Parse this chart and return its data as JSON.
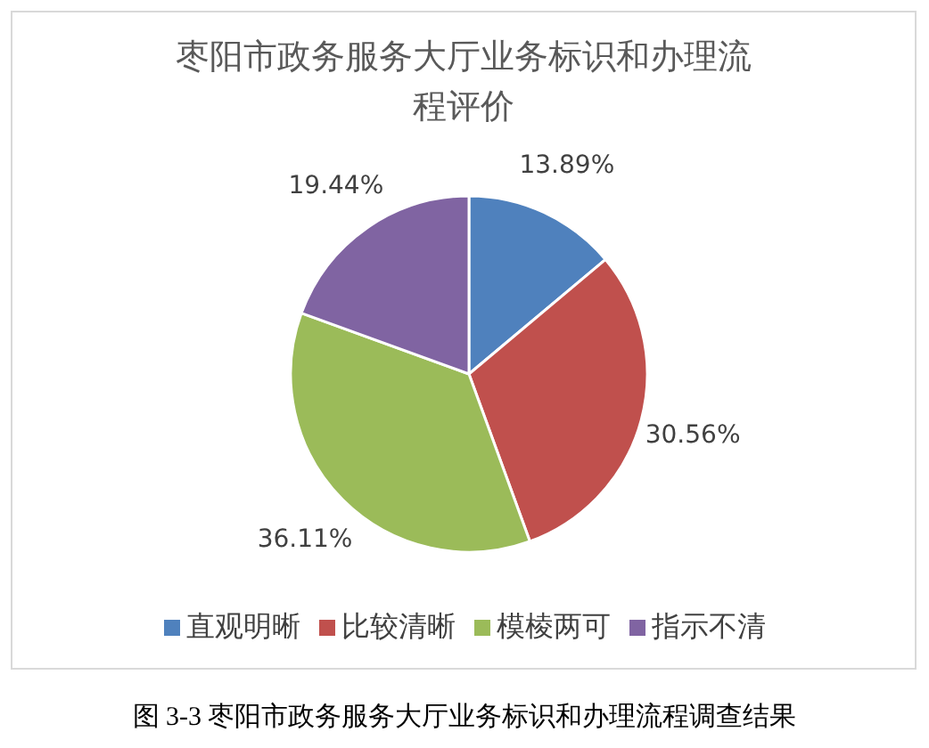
{
  "chart_data": {
    "type": "pie",
    "title": "枣阳市政务服务大厅业务标识和办理流程评价",
    "categories": [
      "直观明晰",
      "比较清晰",
      "模棱两可",
      "指示不清"
    ],
    "values": [
      13.89,
      30.56,
      36.11,
      19.44
    ],
    "value_labels": [
      "13.89%",
      "30.56%",
      "36.11%",
      "19.44%"
    ],
    "colors": [
      "#4f81bd",
      "#c0504d",
      "#9bbb59",
      "#8064a2"
    ],
    "legend": "bottom",
    "annotations": [
      "图 3-3  枣阳市政务服务大厅业务标识和办理流程调查结果"
    ]
  }
}
